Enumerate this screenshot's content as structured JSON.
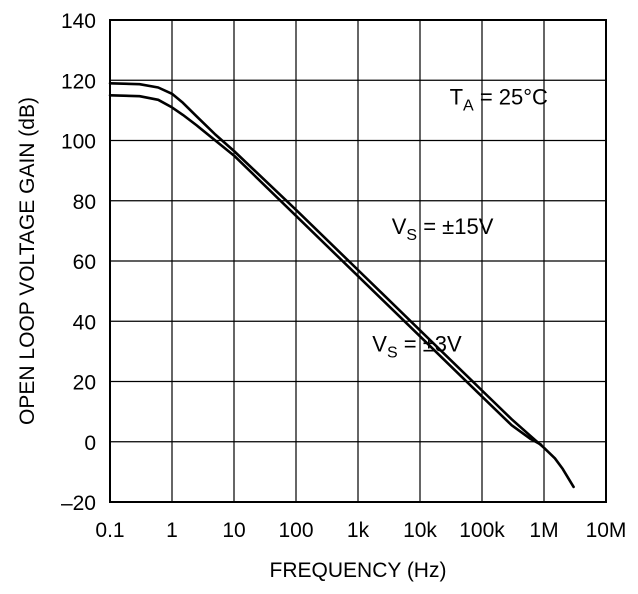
{
  "chart_data": {
    "type": "line",
    "title": "",
    "xlabel": "FREQUENCY (Hz)",
    "ylabel": "OPEN LOOP VOLTAGE GAIN (dB)",
    "xscale": "log",
    "xlim": [
      0.1,
      10000000
    ],
    "ylim": [
      -20,
      140
    ],
    "grid": true,
    "x_ticks": [
      {
        "value": 0.1,
        "label": "0.1"
      },
      {
        "value": 1,
        "label": "1"
      },
      {
        "value": 10,
        "label": "10"
      },
      {
        "value": 100,
        "label": "100"
      },
      {
        "value": 1000,
        "label": "1k"
      },
      {
        "value": 10000,
        "label": "10k"
      },
      {
        "value": 100000,
        "label": "100k"
      },
      {
        "value": 1000000,
        "label": "1M"
      },
      {
        "value": 10000000,
        "label": "10M"
      }
    ],
    "y_ticks": [
      {
        "value": 140,
        "label": "140"
      },
      {
        "value": 120,
        "label": "120"
      },
      {
        "value": 100,
        "label": "100"
      },
      {
        "value": 80,
        "label": "80"
      },
      {
        "value": 60,
        "label": "60"
      },
      {
        "value": 40,
        "label": "40"
      },
      {
        "value": 20,
        "label": "20"
      },
      {
        "value": 0,
        "label": "0"
      },
      {
        "value": -20,
        "label": "–20"
      }
    ],
    "series": [
      {
        "name": "VS = ±15V",
        "x": [
          0.1,
          0.3,
          0.6,
          1.0,
          1.5,
          2.5,
          5,
          10,
          100,
          1000,
          10000,
          100000,
          300000,
          600000,
          1000000,
          1500000,
          2000000,
          3000000
        ],
        "y": [
          119,
          118.7,
          117.6,
          115.5,
          112.5,
          108,
          102,
          96.5,
          77,
          57,
          37,
          17,
          7.5,
          2,
          -2,
          -5.5,
          -9,
          -15
        ]
      },
      {
        "name": "VS = ±3V",
        "x": [
          0.1,
          0.3,
          0.6,
          1.0,
          1.5,
          2.5,
          5,
          10,
          100,
          1000,
          10000,
          100000,
          300000,
          600000,
          900000
        ],
        "y": [
          115,
          114.7,
          113.5,
          111,
          108.5,
          105,
          100,
          95,
          75,
          55,
          35,
          15,
          5.5,
          1,
          -1
        ]
      }
    ],
    "annotations": [
      {
        "id": "temp",
        "main": "T",
        "sub": "A",
        "rest": " = 25°C",
        "x": 30000,
        "y": 112
      },
      {
        "id": "vs15",
        "main": "V",
        "sub": "S",
        "rest": " = ±15V",
        "x": 3500,
        "y": 69
      },
      {
        "id": "vs3",
        "main": "V",
        "sub": "S",
        "rest": " = ±3V",
        "x": 1700,
        "y": 30
      }
    ]
  }
}
